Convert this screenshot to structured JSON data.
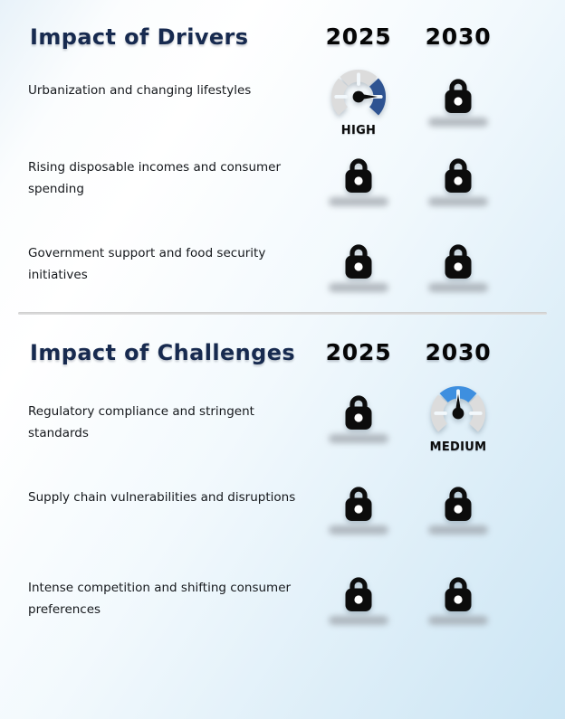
{
  "colors": {
    "title_navy": "#172a4f",
    "year_black": "#060606",
    "body_text": "#15181c",
    "divider_gray": "#d6d6d6",
    "gauge_track": "#dcdcdc",
    "gauge_high": "#2e5391",
    "gauge_medium": "#3e8fdf",
    "icon_black": "#0c0c0c",
    "blur_gray": "#9aa0a7"
  },
  "icons": {
    "lock": "lock-icon",
    "gauge": "gauge-dial-icon",
    "blurred_value": "redacted-text-blur"
  },
  "sections": [
    {
      "title": "Impact of Drivers",
      "years": [
        "2025",
        "2030"
      ],
      "rows": [
        {
          "label": "Urbanization and changing lifestyles",
          "cells": [
            {
              "type": "gauge",
              "level": "HIGH"
            },
            {
              "type": "locked"
            }
          ]
        },
        {
          "label": "Rising disposable incomes and consumer spending",
          "cells": [
            {
              "type": "locked"
            },
            {
              "type": "locked"
            }
          ]
        },
        {
          "label": "Government support and food security initiatives",
          "cells": [
            {
              "type": "locked"
            },
            {
              "type": "locked"
            }
          ]
        }
      ]
    },
    {
      "title": "Impact of Challenges",
      "years": [
        "2025",
        "2030"
      ],
      "rows": [
        {
          "label": "Regulatory compliance and stringent standards",
          "cells": [
            {
              "type": "locked"
            },
            {
              "type": "gauge",
              "level": "MEDIUM"
            }
          ]
        },
        {
          "label": "Supply chain vulnerabilities and disruptions",
          "cells": [
            {
              "type": "locked"
            },
            {
              "type": "locked"
            }
          ]
        },
        {
          "label": "Intense competition and shifting consumer preferences",
          "cells": [
            {
              "type": "locked"
            },
            {
              "type": "locked"
            }
          ]
        }
      ]
    }
  ]
}
